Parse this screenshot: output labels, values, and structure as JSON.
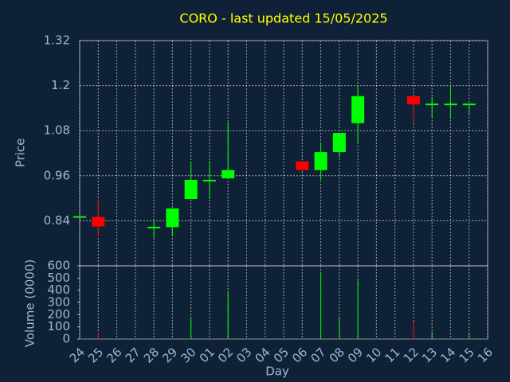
{
  "chart_data": {
    "type": "candlestick",
    "title": "CORO - last updated 15/05/2025",
    "xlabel": "Day",
    "ylabel": "Price",
    "volume_label": "Volume (0000)",
    "categories": [
      "24",
      "25",
      "26",
      "27",
      "28",
      "29",
      "30",
      "01",
      "02",
      "03",
      "04",
      "05",
      "06",
      "07",
      "08",
      "09",
      "10",
      "11",
      "12",
      "13",
      "14",
      "15",
      "16"
    ],
    "open": [
      0.85,
      0.85,
      null,
      null,
      0.822,
      0.823,
      0.898,
      0.947,
      0.953,
      null,
      null,
      null,
      0.998,
      0.975,
      1.023,
      1.1,
      null,
      null,
      1.172,
      1.15,
      1.15,
      1.15,
      null
    ],
    "high": [
      0.85,
      0.898,
      null,
      null,
      0.845,
      0.873,
      0.998,
      1.0,
      1.102,
      null,
      null,
      null,
      0.998,
      1.049,
      1.074,
      1.2,
      null,
      null,
      1.172,
      1.17,
      1.2,
      1.15,
      null
    ],
    "low": [
      0.85,
      0.798,
      null,
      null,
      0.794,
      0.798,
      0.898,
      0.898,
      0.953,
      null,
      null,
      null,
      0.975,
      0.949,
      1.01,
      1.049,
      null,
      null,
      1.1,
      1.114,
      1.11,
      1.125,
      null
    ],
    "close": [
      0.85,
      0.825,
      null,
      null,
      0.822,
      0.873,
      0.949,
      0.947,
      0.975,
      null,
      null,
      null,
      0.975,
      1.023,
      1.074,
      1.172,
      null,
      null,
      1.15,
      1.15,
      1.15,
      1.15,
      null
    ],
    "volume": [
      0,
      50,
      null,
      null,
      0,
      0,
      180,
      0,
      390,
      null,
      null,
      null,
      0,
      550,
      180,
      480,
      null,
      null,
      145,
      60,
      0,
      50,
      null
    ],
    "up_color": "#00ff00",
    "down_color": "#ff0000",
    "ylim": [
      0.72,
      1.32
    ],
    "yticks": [
      0.84,
      0.96,
      1.08,
      1.2,
      1.32
    ],
    "volume_ylim": [
      0,
      600
    ],
    "volume_yticks": [
      0,
      100,
      200,
      300,
      400,
      500,
      600
    ],
    "grid": true
  }
}
